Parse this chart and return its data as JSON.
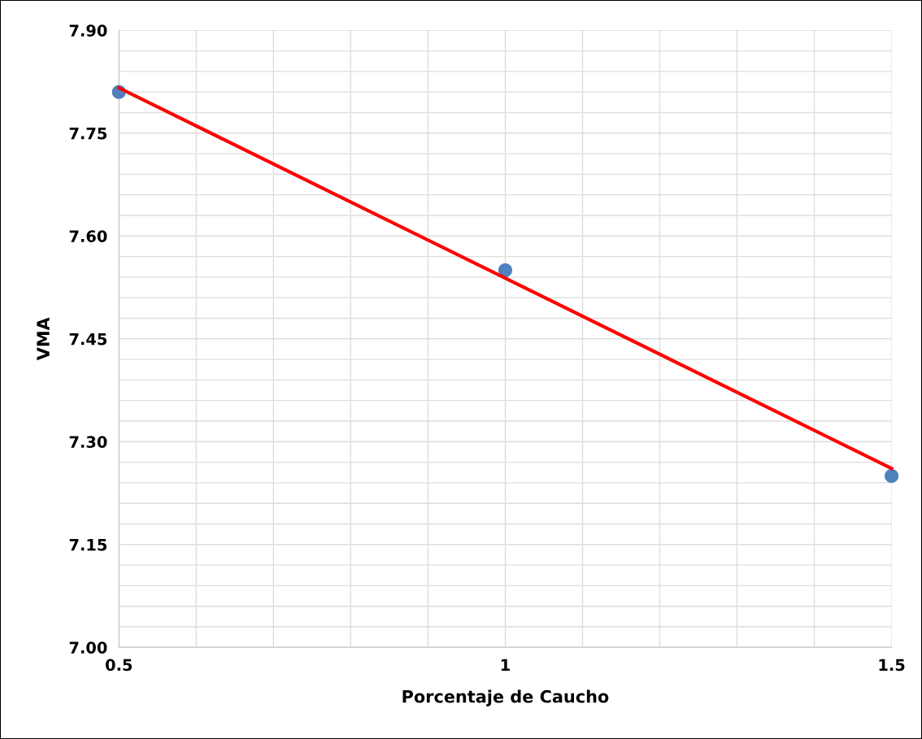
{
  "chart_data": {
    "type": "scatter",
    "xlabel": "Porcentaje de Caucho",
    "ylabel": "VMA",
    "x": [
      0.5,
      1,
      1.5
    ],
    "series": [
      {
        "color": "#4f81bd",
        "values": [
          7.81,
          7.55,
          7.25
        ],
        "marker": "circle"
      },
      {
        "type": "line",
        "color": "#ff0000",
        "x": [
          0.5,
          1.5
        ],
        "values": [
          7.816,
          7.261
        ],
        "marker": "none",
        "line_style": "solid"
      }
    ],
    "xlim": [
      0.5,
      1.5
    ],
    "ylim": [
      7.0,
      7.9
    ],
    "xticks": [
      0.5,
      {
        "value": 0.6,
        "label": null
      },
      {
        "value": 0.7,
        "label": null
      },
      {
        "value": 0.8,
        "label": null
      },
      {
        "value": 0.9,
        "label": null
      },
      1,
      {
        "value": 1.1,
        "label": null
      },
      {
        "value": 1.2,
        "label": null
      },
      {
        "value": 1.3,
        "label": null
      },
      {
        "value": 1.4,
        "label": null
      },
      1.5
    ],
    "yticks": [
      {
        "value": 7.0,
        "label": "7.00"
      },
      {
        "value": 7.03,
        "label": null
      },
      {
        "value": 7.06,
        "label": null
      },
      {
        "value": 7.09,
        "label": null
      },
      {
        "value": 7.12,
        "label": null
      },
      {
        "value": 7.15,
        "label": "7.15"
      },
      {
        "value": 7.18,
        "label": null
      },
      {
        "value": 7.21,
        "label": null
      },
      {
        "value": 7.24,
        "label": null
      },
      {
        "value": 7.27,
        "label": null
      },
      {
        "value": 7.3,
        "label": "7.30"
      },
      {
        "value": 7.33,
        "label": null
      },
      {
        "value": 7.36,
        "label": null
      },
      {
        "value": 7.39,
        "label": null
      },
      {
        "value": 7.42,
        "label": null
      },
      {
        "value": 7.45,
        "label": "7.45"
      },
      {
        "value": 7.48,
        "label": null
      },
      {
        "value": 7.51,
        "label": null
      },
      {
        "value": 7.54,
        "label": null
      },
      {
        "value": 7.57,
        "label": null
      },
      {
        "value": 7.6,
        "label": "7.60"
      },
      {
        "value": 7.63,
        "label": null
      },
      {
        "value": 7.66,
        "label": null
      },
      {
        "value": 7.69,
        "label": null
      },
      {
        "value": 7.72,
        "label": null
      },
      {
        "value": 7.75,
        "label": "7.75"
      },
      {
        "value": 7.78,
        "label": null
      },
      {
        "value": 7.81,
        "label": null
      },
      {
        "value": 7.84,
        "label": null
      },
      {
        "value": 7.87,
        "label": null
      },
      {
        "value": 7.9,
        "label": "7.90"
      }
    ],
    "grid": true
  }
}
